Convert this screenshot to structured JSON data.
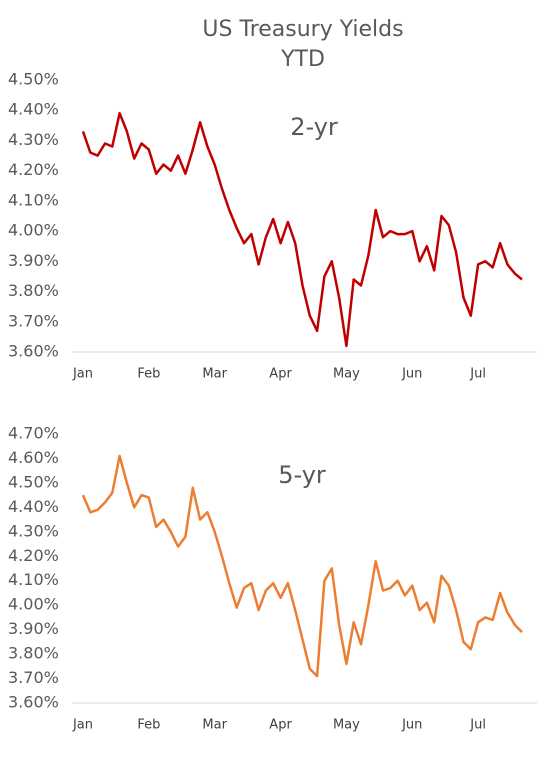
{
  "chart_data": [
    {
      "type": "line",
      "title": "US Treasury Yields",
      "subtitle": "YTD",
      "categories": [
        "Jan",
        null,
        null,
        null,
        null,
        null,
        null,
        null,
        null,
        "Feb",
        null,
        null,
        null,
        null,
        null,
        null,
        null,
        null,
        "Mar",
        null,
        null,
        null,
        null,
        null,
        null,
        null,
        null,
        "Apr",
        null,
        null,
        null,
        null,
        null,
        null,
        null,
        null,
        "May",
        null,
        null,
        null,
        null,
        null,
        null,
        null,
        null,
        "Jun",
        null,
        null,
        null,
        null,
        null,
        null,
        null,
        null,
        "Jul",
        null,
        null,
        null,
        null,
        null,
        null
      ],
      "series": [
        {
          "name": "2-yr",
          "color": "#c00000",
          "values": [
            4.33,
            4.26,
            4.25,
            4.29,
            4.28,
            4.39,
            4.33,
            4.24,
            4.29,
            4.27,
            4.19,
            4.22,
            4.2,
            4.25,
            4.19,
            4.27,
            4.36,
            4.28,
            4.22,
            4.14,
            4.07,
            4.01,
            3.96,
            3.99,
            3.89,
            3.98,
            4.04,
            3.96,
            4.03,
            3.96,
            3.82,
            3.72,
            3.67,
            3.85,
            3.9,
            3.78,
            3.62,
            3.84,
            3.82,
            3.92,
            4.07,
            3.98,
            4.0,
            3.99,
            3.99,
            4.0,
            3.9,
            3.95,
            3.87,
            4.05,
            4.02,
            3.93,
            3.78,
            3.72,
            3.89,
            3.9,
            3.88,
            3.96,
            3.89,
            3.86,
            3.84
          ]
        }
      ],
      "ylim": [
        3.6,
        4.5
      ],
      "yticks": [
        {
          "value": 3.6,
          "label": "3.60%"
        },
        {
          "value": 3.7,
          "label": "3.70%"
        },
        {
          "value": 3.8,
          "label": "3.80%"
        },
        {
          "value": 3.9,
          "label": "3.90%"
        },
        {
          "value": 4.0,
          "label": "4.00%"
        },
        {
          "value": 4.1,
          "label": "4.10%"
        },
        {
          "value": 4.2,
          "label": "4.20%"
        },
        {
          "value": 4.3,
          "label": "4.30%"
        },
        {
          "value": 4.4,
          "label": "4.40%"
        },
        {
          "value": 4.5,
          "label": "4.50%"
        }
      ]
    },
    {
      "type": "line",
      "categories": [
        "Jan",
        null,
        null,
        null,
        null,
        null,
        null,
        null,
        null,
        "Feb",
        null,
        null,
        null,
        null,
        null,
        null,
        null,
        null,
        "Mar",
        null,
        null,
        null,
        null,
        null,
        null,
        null,
        null,
        "Apr",
        null,
        null,
        null,
        null,
        null,
        null,
        null,
        null,
        "May",
        null,
        null,
        null,
        null,
        null,
        null,
        null,
        null,
        "Jun",
        null,
        null,
        null,
        null,
        null,
        null,
        null,
        null,
        "Jul",
        null,
        null,
        null,
        null,
        null,
        null
      ],
      "series": [
        {
          "name": "5-yr",
          "color": "#ed7d31",
          "values": [
            4.45,
            4.38,
            4.39,
            4.42,
            4.46,
            4.61,
            4.5,
            4.4,
            4.45,
            4.44,
            4.32,
            4.35,
            4.3,
            4.24,
            4.28,
            4.48,
            4.35,
            4.38,
            4.3,
            4.2,
            4.09,
            3.99,
            4.07,
            4.09,
            3.98,
            4.06,
            4.09,
            4.03,
            4.09,
            3.98,
            3.86,
            3.74,
            3.71,
            4.1,
            4.15,
            3.92,
            3.76,
            3.93,
            3.84,
            4.0,
            4.18,
            4.06,
            4.07,
            4.1,
            4.04,
            4.08,
            3.98,
            4.01,
            3.93,
            4.12,
            4.08,
            3.98,
            3.85,
            3.82,
            3.93,
            3.95,
            3.94,
            4.05,
            3.97,
            3.92,
            3.89
          ]
        }
      ],
      "ylim": [
        3.6,
        4.7
      ],
      "yticks": [
        {
          "value": 3.6,
          "label": "3.60%"
        },
        {
          "value": 3.7,
          "label": "3.70%"
        },
        {
          "value": 3.8,
          "label": "3.80%"
        },
        {
          "value": 3.9,
          "label": "3.90%"
        },
        {
          "value": 4.0,
          "label": "4.00%"
        },
        {
          "value": 4.1,
          "label": "4.10%"
        },
        {
          "value": 4.2,
          "label": "4.20%"
        },
        {
          "value": 4.3,
          "label": "4.30%"
        },
        {
          "value": 4.4,
          "label": "4.40%"
        },
        {
          "value": 4.5,
          "label": "4.50%"
        },
        {
          "value": 4.6,
          "label": "4.60%"
        },
        {
          "value": 4.7,
          "label": "4.70%"
        }
      ]
    }
  ]
}
